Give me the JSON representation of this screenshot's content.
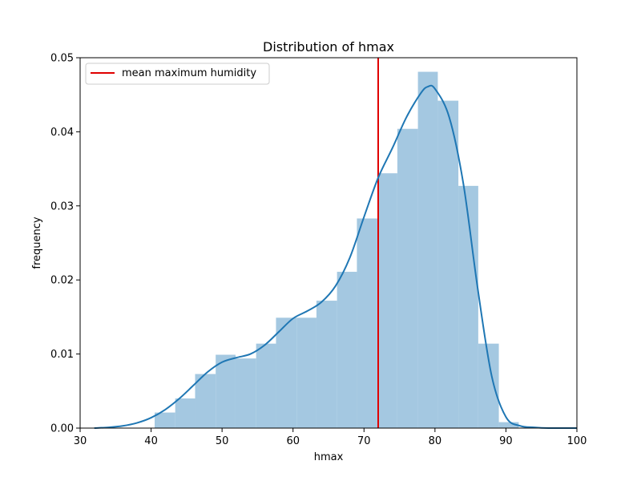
{
  "chart_data": {
    "type": "bar",
    "title": "Distribution of hmax",
    "xlabel": "hmax",
    "ylabel": "frequency",
    "xlim": [
      30,
      100
    ],
    "ylim": [
      0,
      0.05
    ],
    "xticks": [
      30,
      40,
      50,
      60,
      70,
      80,
      90,
      100
    ],
    "yticks": [
      0.0,
      0.01,
      0.02,
      0.03,
      0.04,
      0.05
    ],
    "xtick_labels": [
      "30",
      "40",
      "50",
      "60",
      "70",
      "80",
      "90",
      "100"
    ],
    "ytick_labels": [
      "0.00",
      "0.01",
      "0.02",
      "0.03",
      "0.04",
      "0.05"
    ],
    "grid": false,
    "histogram": {
      "bin_edges": [
        40.5,
        43.4,
        46.2,
        49.1,
        51.9,
        54.8,
        57.6,
        60.5,
        63.3,
        66.2,
        69.0,
        71.9,
        74.7,
        77.6,
        80.4,
        83.3,
        86.1,
        89.0,
        91.8
      ],
      "values": [
        0.0021,
        0.004,
        0.0073,
        0.0099,
        0.0094,
        0.0114,
        0.0149,
        0.0149,
        0.0172,
        0.0211,
        0.0283,
        0.0344,
        0.0404,
        0.0481,
        0.0442,
        0.0327,
        0.0114,
        0.0008
      ],
      "color": "#a4c8e1"
    },
    "kde": {
      "x": [
        32,
        34,
        36,
        38,
        40,
        42,
        44,
        46,
        48,
        50,
        52,
        54,
        56,
        58,
        60,
        62,
        64,
        66,
        68,
        70,
        72,
        74,
        76,
        78,
        79,
        80,
        82,
        84,
        86,
        88,
        90,
        92,
        94,
        96,
        98,
        100
      ],
      "y": [
        0.0,
        0.0001,
        0.0003,
        0.0007,
        0.0014,
        0.0025,
        0.004,
        0.0058,
        0.0076,
        0.0089,
        0.0095,
        0.01,
        0.0112,
        0.013,
        0.0148,
        0.0158,
        0.017,
        0.0192,
        0.023,
        0.0285,
        0.0338,
        0.0378,
        0.042,
        0.0452,
        0.0461,
        0.0458,
        0.042,
        0.033,
        0.019,
        0.007,
        0.0015,
        0.0003,
        0.0001,
        0.0,
        0.0,
        0.0
      ],
      "color": "#1f77b4"
    },
    "mean_line": {
      "x": 72.0,
      "color": "#e00000",
      "label": "mean maximum humidity"
    },
    "legend": {
      "placement": "top-left",
      "entries": [
        "mean maximum humidity"
      ]
    }
  }
}
